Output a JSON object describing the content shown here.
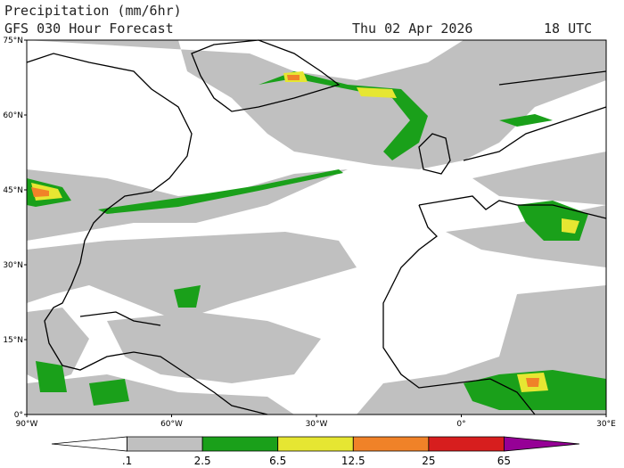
{
  "header": {
    "title": "Precipitation (mm/6hr)",
    "subtitle": "GFS 030 Hour Forecast",
    "date": "Thu 02 Apr 2026",
    "time": "18 UTC"
  },
  "map": {
    "lat_labels": [
      "75°N",
      "60°N",
      "45°N",
      "30°N",
      "15°N",
      "0°"
    ],
    "lon_labels": [
      "90°W",
      "60°W",
      "30°W",
      "0°",
      "30°E"
    ]
  },
  "colorbar": {
    "labels": [
      ".1",
      "2.5",
      "6.5",
      "12.5",
      "25",
      "65"
    ],
    "colors": [
      "#ffffff",
      "#c0c0c0",
      "#1aa01a",
      "#e6e632",
      "#f08228",
      "#d71e1e",
      "#960096"
    ]
  }
}
